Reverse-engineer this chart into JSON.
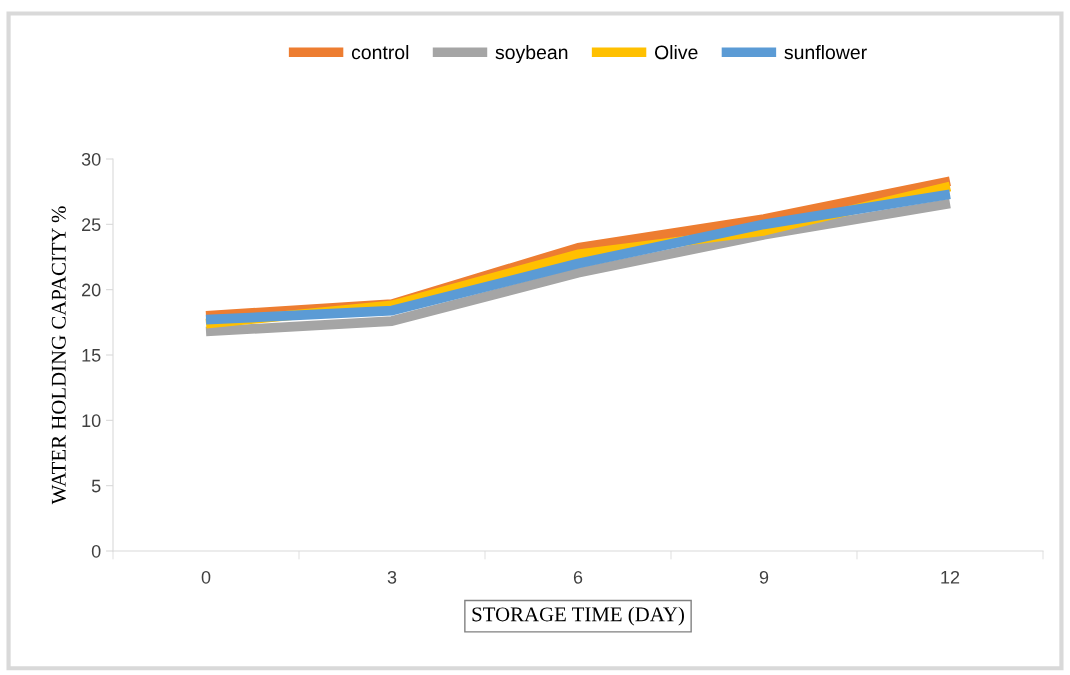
{
  "chart_data": {
    "type": "line",
    "xlabel": "STORAGE TIME (DAY)",
    "ylabel": "WATER HOLDING CAPACITY %",
    "categories": [
      "0",
      "3",
      "6",
      "9",
      "12"
    ],
    "series": [
      {
        "name": "control",
        "color": "#ed7d31",
        "values": [
          18.0,
          18.9,
          23.2,
          25.4,
          28.3
        ]
      },
      {
        "name": "soybean",
        "color": "#a5a5a5",
        "values": [
          16.8,
          17.6,
          21.3,
          24.2,
          26.6
        ]
      },
      {
        "name": "Olive",
        "color": "#ffc000",
        "values": [
          17.4,
          18.8,
          22.7,
          24.5,
          27.9
        ]
      },
      {
        "name": "sunflower",
        "color": "#5b9bd5",
        "values": [
          17.7,
          18.4,
          22.0,
          25.0,
          27.3
        ]
      }
    ],
    "ylim": [
      0,
      30
    ],
    "yticks": [
      0,
      5,
      10,
      15,
      20,
      25,
      30
    ],
    "grid": false,
    "legend": "top",
    "marker": "none",
    "line_style": "solid"
  }
}
